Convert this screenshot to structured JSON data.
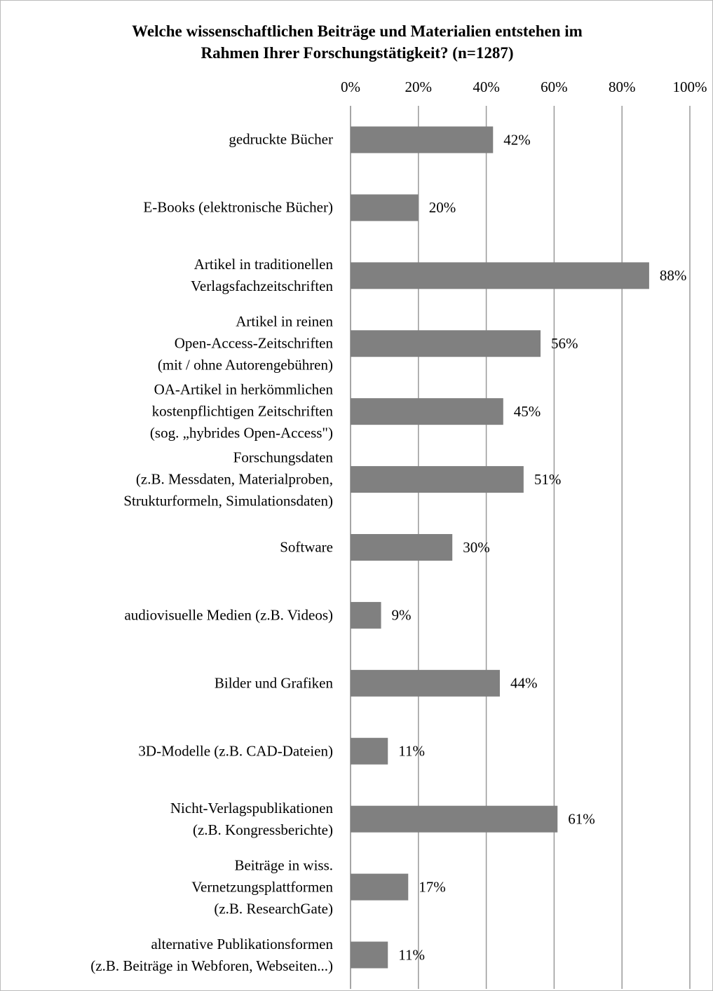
{
  "chart_data": {
    "type": "barh",
    "title": "Welche wissenschaftlichen Beiträge und Materialien entstehen im\nRahmen Ihrer Forschungstätigkeit? (n=1287)",
    "categories": [
      "gedruckte Bücher",
      "E-Books (elektronische Bücher)",
      "Artikel in traditionellen\nVerlagsfachzeitschriften",
      "Artikel in reinen\nOpen-Access-Zeitschriften\n(mit / ohne Autorengebühren)",
      "OA-Artikel in herkömmlichen\nkostenpflichtigen Zeitschriften\n(sog. „hybrides Open-Access\")",
      "Forschungsdaten\n(z.B. Messdaten, Materialproben,\nStrukturformeln, Simulationsdaten)",
      "Software",
      "audiovisuelle Medien (z.B. Videos)",
      "Bilder und Grafiken",
      "3D-Modelle (z.B. CAD-Dateien)",
      "Nicht-Verlagspublikationen\n(z.B. Kongressberichte)",
      "Beiträge in wiss.\nVernetzungsplattformen\n(z.B. ResearchGate)",
      "alternative Publikationsformen\n(z.B. Beiträge in Webforen, Webseiten...)"
    ],
    "values": [
      42,
      20,
      88,
      56,
      45,
      51,
      30,
      9,
      44,
      11,
      61,
      17,
      11
    ],
    "value_labels": [
      "42%",
      "20%",
      "88%",
      "56%",
      "45%",
      "51%",
      "30%",
      "9%",
      "44%",
      "11%",
      "61%",
      "17%",
      "11%"
    ],
    "color": "#808080",
    "xlim": [
      0,
      100
    ],
    "xticks": [
      {
        "value": 0,
        "label": "0%"
      },
      {
        "value": 20,
        "label": "20%"
      },
      {
        "value": 40,
        "label": "40%"
      },
      {
        "value": 60,
        "label": "60%"
      },
      {
        "value": 80,
        "label": "80%"
      },
      {
        "value": 100,
        "label": "100%"
      }
    ],
    "grid": true
  }
}
